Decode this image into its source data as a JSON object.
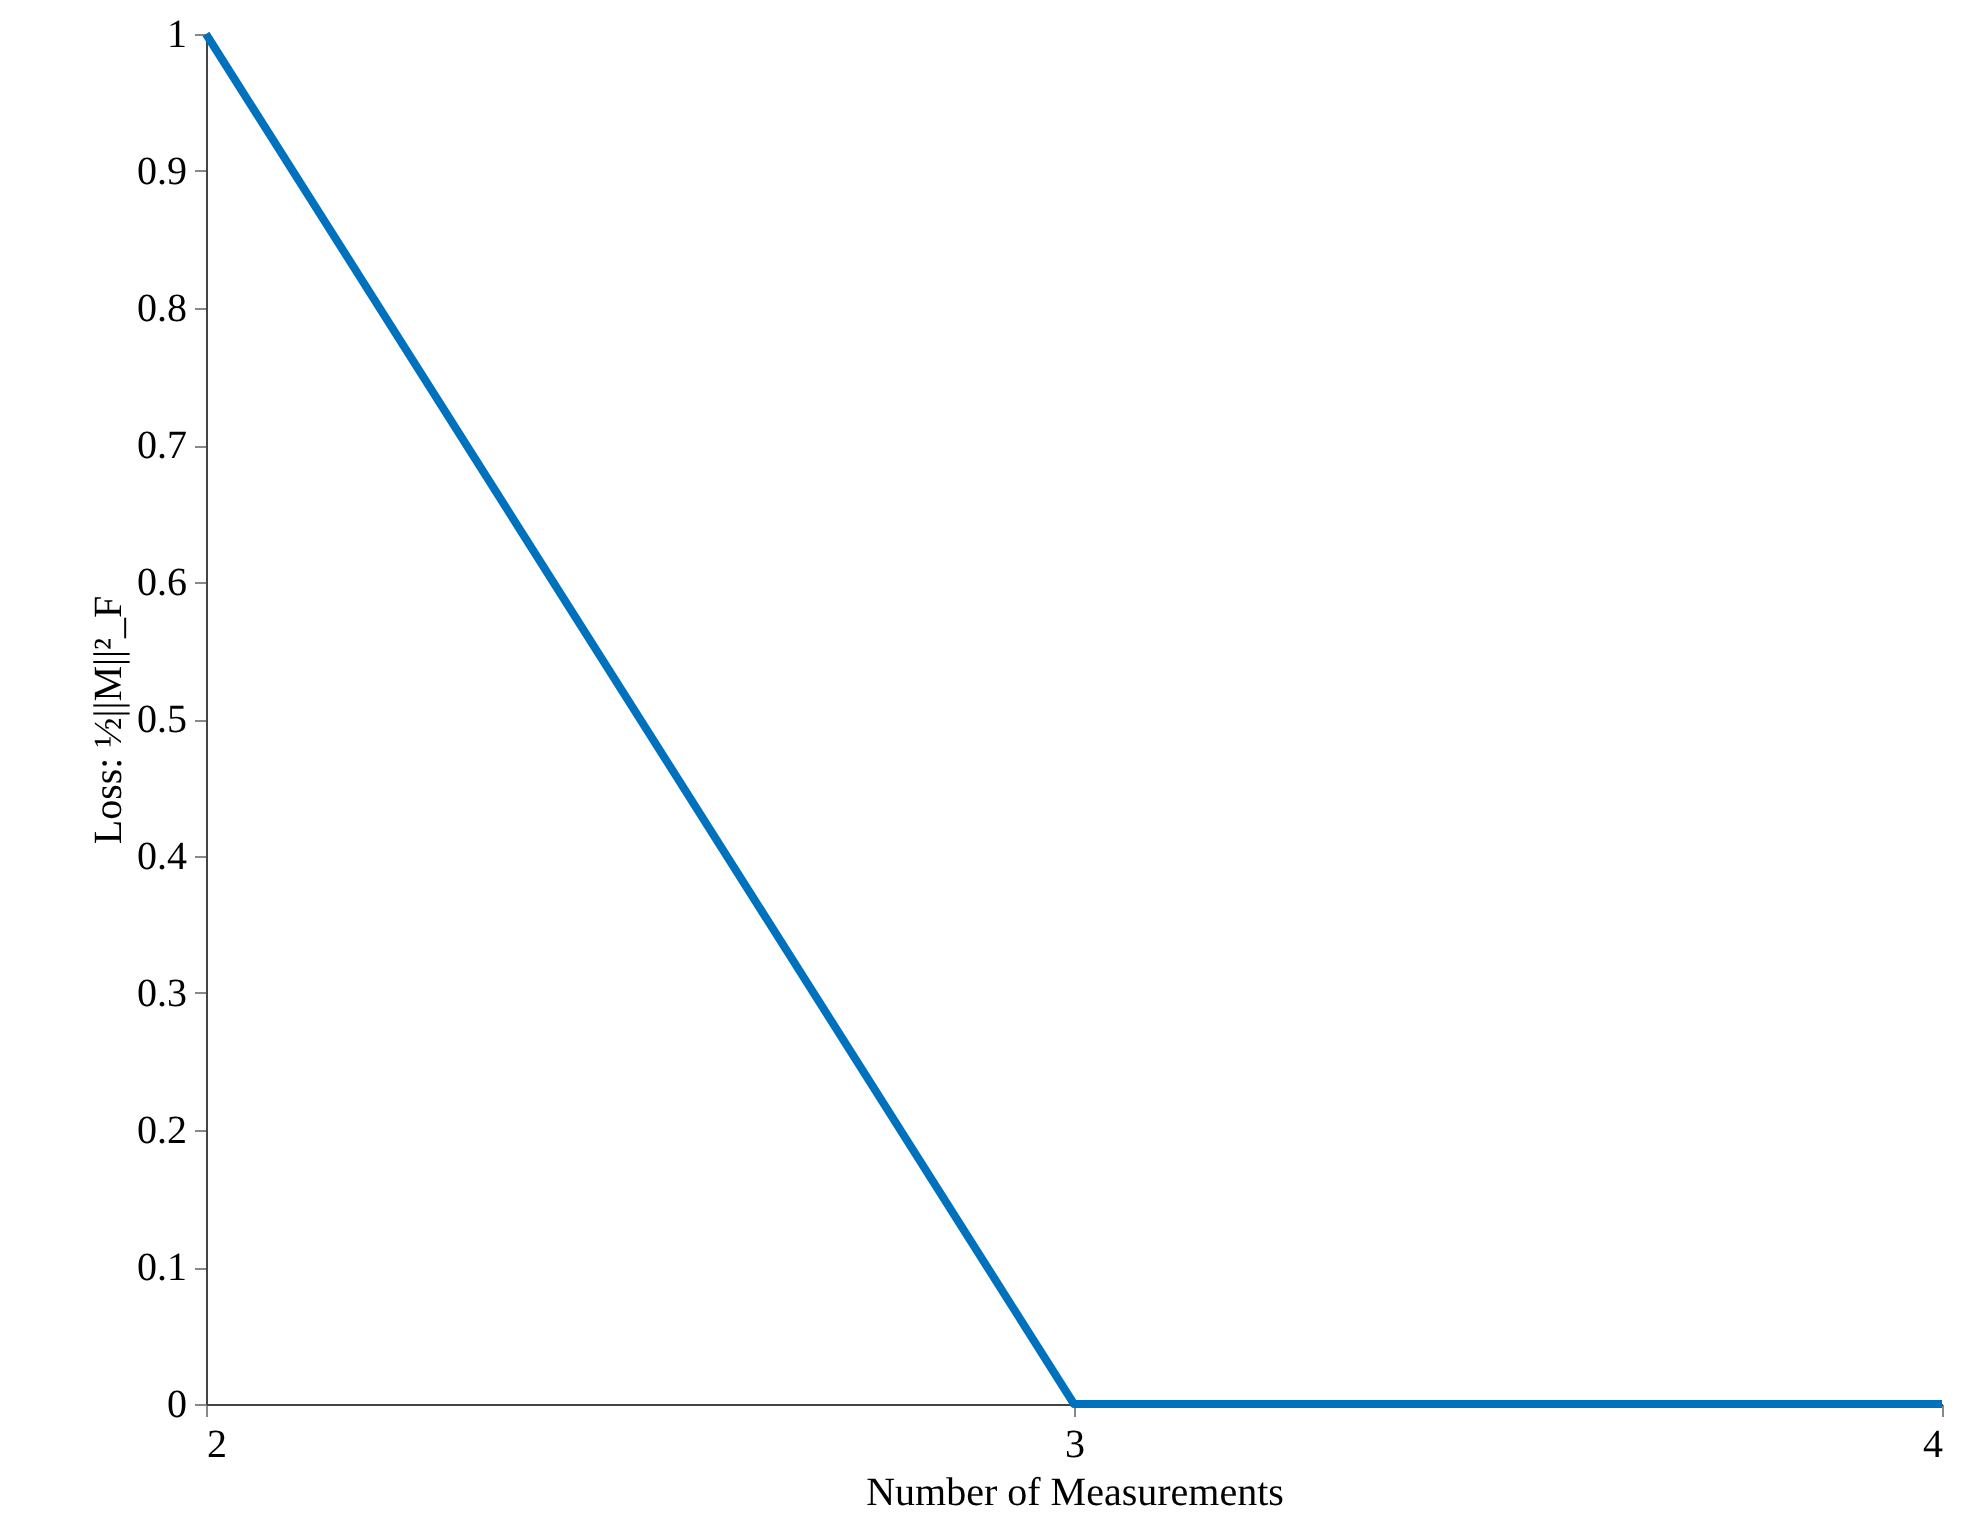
{
  "chart_data": {
    "type": "line",
    "xlabel": "Number of Measurements",
    "ylabel": "Loss: ½||M||²_F",
    "x": [
      2,
      3,
      4
    ],
    "series": [
      {
        "color": "#0072bd",
        "values": [
          1,
          0,
          0
        ]
      }
    ],
    "xlim": [
      2,
      4
    ],
    "ylim": [
      0,
      1
    ],
    "xticks": [
      2,
      3,
      4
    ],
    "yticks": [
      0,
      0.1,
      0.2,
      0.3,
      0.4,
      0.5,
      0.6,
      0.7,
      0.8,
      0.9,
      1
    ],
    "line_style": "solid"
  }
}
